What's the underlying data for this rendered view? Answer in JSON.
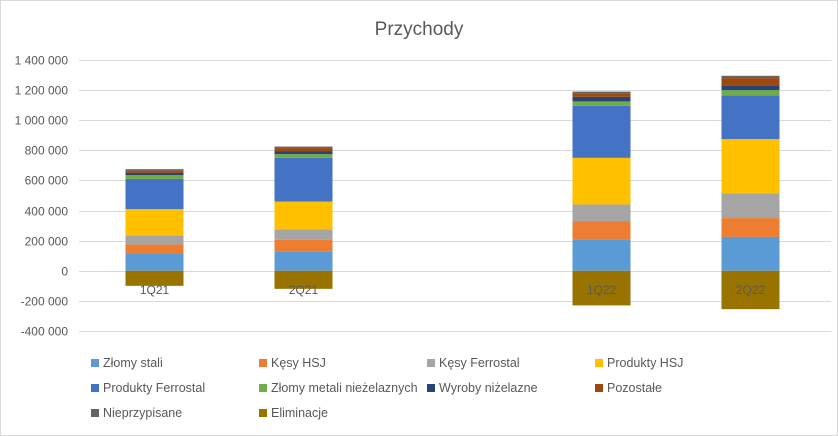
{
  "chart_data": {
    "type": "bar",
    "stacked": true,
    "title": "Przychody",
    "xlabel": "",
    "ylabel": "",
    "categories": [
      "1Q21",
      "2Q21",
      "",
      "1Q22",
      "2Q22"
    ],
    "ylim": [
      -400000,
      1400000
    ],
    "yticks": [
      -400000,
      -200000,
      0,
      200000,
      400000,
      600000,
      800000,
      1000000,
      1200000,
      1400000
    ],
    "ytick_labels": [
      "-400 000",
      "-200 000",
      "0",
      "200 000",
      "400 000",
      "600 000",
      "800 000",
      "1 000 000",
      "1 200 000",
      "1 400 000"
    ],
    "grid": true,
    "legend_position": "bottom",
    "series": [
      {
        "name": "Złomy stali",
        "color": "#5B9BD5",
        "values": [
          115000,
          130000,
          null,
          205000,
          225000
        ]
      },
      {
        "name": "Kęsy HSJ",
        "color": "#ED7D31",
        "values": [
          60000,
          75000,
          null,
          125000,
          125000
        ]
      },
      {
        "name": "Kęsy Ferrostal",
        "color": "#A5A5A5",
        "values": [
          60000,
          70000,
          null,
          110000,
          165000
        ]
      },
      {
        "name": "Produkty HSJ",
        "color": "#FFC000",
        "values": [
          175000,
          185000,
          null,
          310000,
          360000
        ]
      },
      {
        "name": "Produkty Ferrostal",
        "color": "#4472C4",
        "values": [
          200000,
          290000,
          null,
          345000,
          290000
        ]
      },
      {
        "name": "Złomy metali nieżelaznych",
        "color": "#70AD47",
        "values": [
          25000,
          25000,
          null,
          30000,
          35000
        ]
      },
      {
        "name": "Wyroby niżelazne",
        "color": "#264478",
        "values": [
          15000,
          20000,
          null,
          30000,
          30000
        ]
      },
      {
        "name": "Pozostałe",
        "color": "#9E480E",
        "values": [
          15000,
          20000,
          null,
          25000,
          50000
        ]
      },
      {
        "name": "Nieprzypisane",
        "color": "#636363",
        "values": [
          10000,
          10000,
          null,
          10000,
          15000
        ]
      },
      {
        "name": "Eliminacje",
        "color": "#997300",
        "values": [
          -100000,
          -120000,
          null,
          -230000,
          -255000
        ]
      }
    ]
  }
}
